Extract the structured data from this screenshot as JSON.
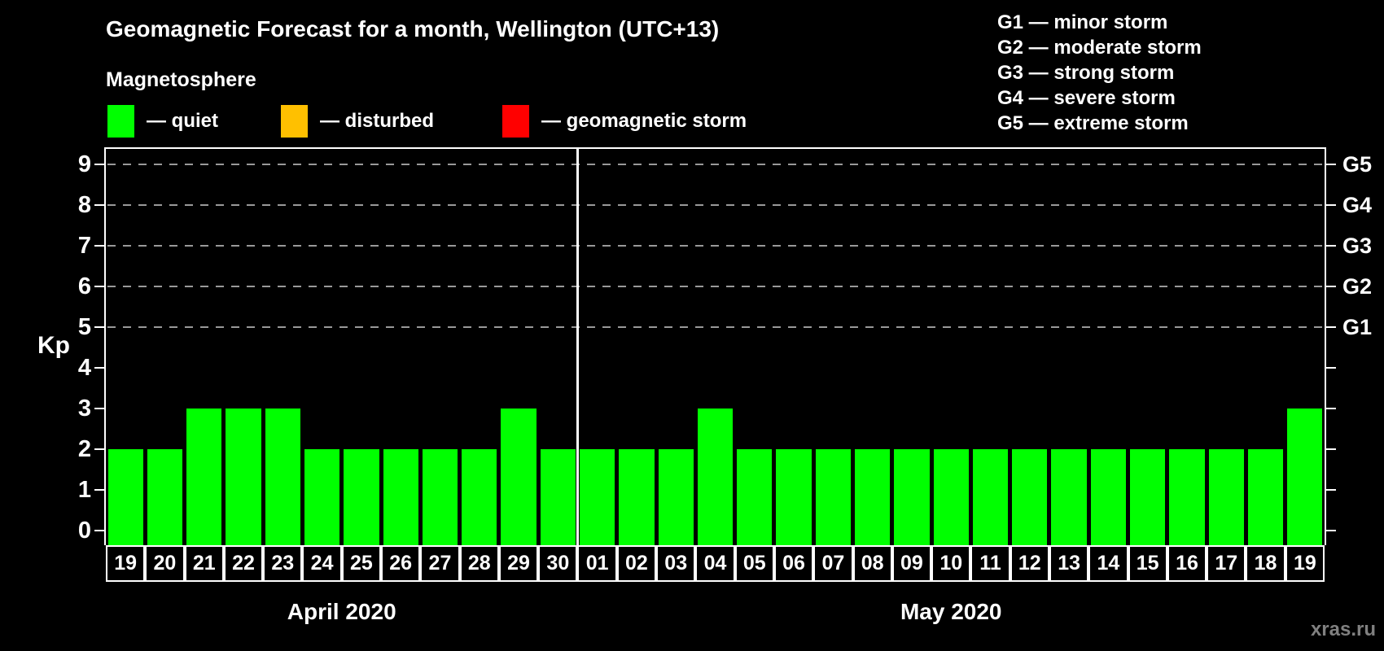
{
  "title": "Geomagnetic Forecast for a month, Wellington (UTC+13)",
  "subtitle": "Magnetosphere",
  "legend": {
    "dash": "—",
    "items": [
      {
        "key": "quiet",
        "label": "quiet",
        "color": "#00ff00"
      },
      {
        "key": "disturbed",
        "label": "disturbed",
        "color": "#ffc000"
      },
      {
        "key": "storm",
        "label": "geomagnetic storm",
        "color": "#ff0000"
      }
    ]
  },
  "g_legend": [
    "G1 — minor storm",
    "G2 — moderate storm",
    "G3 — strong storm",
    "G4 — severe storm",
    "G5 — extreme storm"
  ],
  "watermark": "xras.ru",
  "chart_data": {
    "type": "bar",
    "ylabel": "Kp",
    "ylim": [
      -0.36,
      9.38
    ],
    "yticks": [
      0,
      1,
      2,
      3,
      4,
      5,
      6,
      7,
      8,
      9
    ],
    "gridlines_at": [
      5,
      6,
      7,
      8,
      9
    ],
    "grid": "dashed, horizontal, Kp 5-9 only",
    "right_axis": {
      "at": [
        5,
        6,
        7,
        8,
        9
      ],
      "labels": [
        "G1",
        "G2",
        "G3",
        "G4",
        "G5"
      ]
    },
    "categories": [
      "19",
      "20",
      "21",
      "22",
      "23",
      "24",
      "25",
      "26",
      "27",
      "28",
      "29",
      "30",
      "01",
      "02",
      "03",
      "04",
      "05",
      "06",
      "07",
      "08",
      "09",
      "10",
      "11",
      "12",
      "13",
      "14",
      "15",
      "16",
      "17",
      "18",
      "19"
    ],
    "values": [
      2,
      2,
      3,
      3,
      3,
      2,
      2,
      2,
      2,
      2,
      3,
      2,
      2,
      2,
      2,
      3,
      2,
      2,
      2,
      2,
      2,
      2,
      2,
      2,
      2,
      2,
      2,
      2,
      2,
      2,
      3
    ],
    "months": [
      {
        "label": "April 2020",
        "days": 12
      },
      {
        "label": "May 2020",
        "days": 19
      }
    ],
    "color_rules": {
      "quiet_kp_max": 3,
      "disturbed_kp": 4,
      "storm_kp_min": 5
    },
    "colors": {
      "quiet": "#00ff00",
      "disturbed": "#ffc000",
      "storm": "#ff0000",
      "axis": "#ffffff",
      "grid": "#999999",
      "text": "#ffffff",
      "background": "#000000",
      "watermark": "#808080"
    }
  }
}
